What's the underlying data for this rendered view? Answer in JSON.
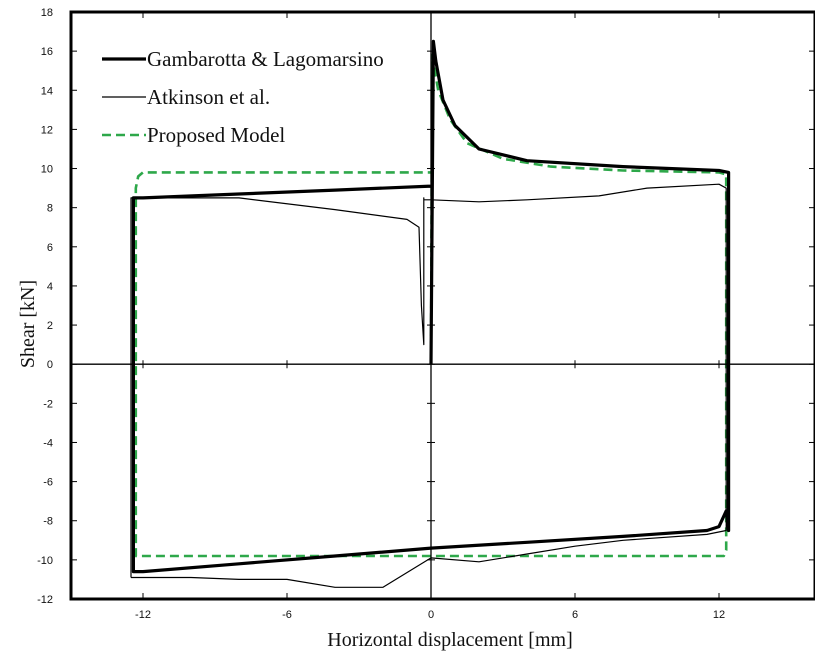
{
  "chart_data": {
    "type": "line",
    "xlabel": "Horizontal displacement [mm]",
    "ylabel": "Shear [kN]",
    "xlim": [
      -15.0,
      16.0
    ],
    "ylim": [
      -12,
      18
    ],
    "xticks": [
      -12,
      -6,
      0,
      6,
      12
    ],
    "xtick_labels": [
      "-12",
      "-6",
      "0",
      "6",
      "12"
    ],
    "yticks": [
      -12,
      -10,
      -8,
      -6,
      -4,
      -2,
      0,
      2,
      4,
      6,
      8,
      10,
      12,
      14,
      16,
      18
    ],
    "ytick_labels": [
      "-12",
      "-10",
      "-8",
      "-6",
      "-4",
      "-2",
      "0",
      "2",
      "4",
      "6",
      "8",
      "10",
      "12",
      "14",
      "16",
      "18"
    ],
    "grid": false,
    "legend_position": "top-left",
    "series": [
      {
        "name": "Gambarotta & Lagomarsino",
        "style": "thick-solid",
        "color": "#000000",
        "x": [
          0.0,
          0.1,
          0.2,
          0.5,
          1.0,
          2.0,
          4.0,
          8.0,
          12.0,
          12.4,
          12.4,
          12.4,
          12.3,
          12.0,
          11.5,
          8.0,
          4.0,
          0.0,
          -4.0,
          -8.0,
          -12.0,
          -12.4,
          -12.4,
          -12.4,
          -12.0,
          -8.0,
          -4.0,
          0.0
        ],
        "y": [
          0.0,
          16.5,
          15.5,
          13.5,
          12.2,
          11.0,
          10.4,
          10.1,
          9.9,
          9.8,
          0.0,
          -8.5,
          -7.5,
          -8.3,
          -8.5,
          -8.8,
          -9.1,
          -9.4,
          -9.8,
          -10.2,
          -10.6,
          -10.6,
          0.0,
          8.5,
          8.5,
          8.7,
          8.9,
          9.1
        ]
      },
      {
        "name": "Atkinson et al.",
        "style": "thin-solid",
        "color": "#000000",
        "x": [
          -12.5,
          -12.5,
          -12.0,
          -8.0,
          -4.0,
          -1.0,
          -0.5,
          -0.4,
          -0.3,
          -0.3,
          -0.3,
          0.0,
          2.0,
          4.0,
          7.0,
          9.0,
          12.0,
          12.3,
          12.3,
          12.3,
          11.5,
          8.0,
          6.0,
          4.0,
          2.0,
          0.0,
          -2.0,
          -4.0,
          -6.0,
          -8.0,
          -10.0,
          -12.0,
          -12.5
        ],
        "y": [
          -10.9,
          8.5,
          8.5,
          8.5,
          7.9,
          7.4,
          7.0,
          3.0,
          1.0,
          8.5,
          8.4,
          8.4,
          8.3,
          8.4,
          8.6,
          9.0,
          9.2,
          9.0,
          0.0,
          -8.5,
          -8.7,
          -9.0,
          -9.3,
          -9.7,
          -10.1,
          -9.9,
          -11.4,
          -11.4,
          -11.0,
          -11.0,
          -10.9,
          -10.9,
          -10.9
        ]
      },
      {
        "name": "Proposed Model",
        "style": "green-dashed",
        "color": "#2ea84a",
        "x": [
          0.0,
          0.05,
          0.3,
          0.8,
          1.5,
          3.0,
          5.0,
          8.0,
          12.0,
          12.3,
          12.3,
          12.2,
          12.0,
          11.0,
          6.0,
          0.0,
          -6.0,
          -12.0,
          -12.3,
          -12.3,
          -12.2,
          -12.0,
          -8.0,
          -4.0,
          0.0
        ],
        "y": [
          0.0,
          15.8,
          14.0,
          12.5,
          11.3,
          10.5,
          10.1,
          9.9,
          9.8,
          9.7,
          -9.5,
          -9.8,
          -9.8,
          -9.8,
          -9.8,
          -9.8,
          -9.8,
          -9.8,
          -9.8,
          9.0,
          9.6,
          9.8,
          9.8,
          9.8,
          9.8
        ]
      }
    ]
  }
}
